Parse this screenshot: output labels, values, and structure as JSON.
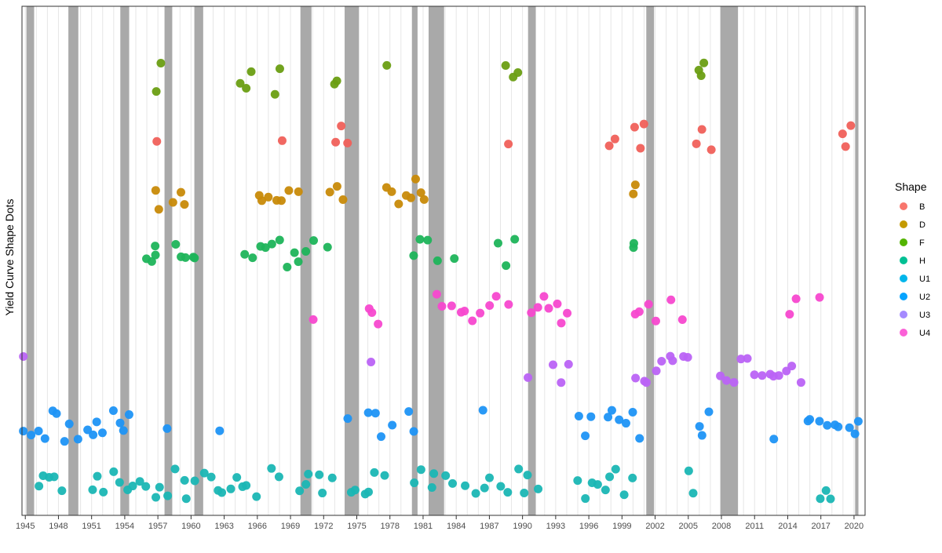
{
  "chart_data": {
    "type": "scatter",
    "title": "",
    "xlabel": "",
    "ylabel": "Yield Curve Shape Dots",
    "x_ticks": [
      "1945",
      "1948",
      "1951",
      "1954",
      "1957",
      "1960",
      "1963",
      "1966",
      "1969",
      "1972",
      "1975",
      "1978",
      "1981",
      "1984",
      "1987",
      "1990",
      "1993",
      "1996",
      "1999",
      "2002",
      "2005",
      "2008",
      "2011",
      "2014",
      "2017",
      "2020"
    ],
    "xlim": [
      1944.7,
      2021.0
    ],
    "grid": "vertical",
    "legend": {
      "title": "Shape",
      "placement": "right",
      "entries": [
        "B",
        "D",
        "F",
        "H",
        "U1",
        "U2",
        "U3",
        "U4"
      ]
    },
    "category_order": [
      "U1",
      "U2",
      "U3",
      "U4",
      "H",
      "D",
      "B",
      "F"
    ],
    "colors": {
      "B": "#F8766D",
      "D": "#C49A00",
      "F": "#53B400",
      "H": "#00C094",
      "U1": "#00B6EB",
      "U2": "#06A4FF",
      "U3": "#A58AFF",
      "U4": "#FB61D7"
    },
    "point_colors": {
      "B": "#F0605A",
      "D": "#C88A08",
      "F": "#6A9E12",
      "H": "#1DB45A",
      "U1": "#1AB6B4",
      "U2": "#1E94F5",
      "U3": "#BB63F5",
      "U4": "#F748CF"
    },
    "recession_color": "#A9A9A9",
    "recessions": [
      [
        1945.1,
        1945.8
      ],
      [
        1948.9,
        1949.8
      ],
      [
        1953.6,
        1954.4
      ],
      [
        1957.6,
        1958.3
      ],
      [
        1960.3,
        1961.1
      ],
      [
        1969.9,
        1970.9
      ],
      [
        1973.9,
        1975.2
      ],
      [
        1980.0,
        1980.5
      ],
      [
        1981.5,
        1982.9
      ],
      [
        1990.5,
        1991.2
      ],
      [
        2001.2,
        2001.9
      ],
      [
        2007.9,
        2009.5
      ],
      [
        2020.1,
        2020.4
      ]
    ],
    "series": [
      {
        "name": "B",
        "x": [
          1957.0,
          1968.0,
          1973.0,
          1973.4,
          1974.0,
          1988.8,
          1998.0,
          1998.5,
          2000.0,
          2000.5,
          2001.0,
          2005.8,
          2006.3,
          2006.9,
          2019.0,
          2019.4,
          2019.8
        ]
      },
      {
        "name": "D",
        "x": [
          1956.8,
          1957.1,
          1958.5,
          1958.9,
          1959.5,
          1966.0,
          1966.6,
          1967.2,
          1967.8,
          1968.3,
          1968.9,
          1969.5,
          1972.8,
          1973.4,
          1974.0,
          1977.8,
          1978.3,
          1978.8,
          1979.3,
          1979.8,
          1980.3,
          1980.8,
          1981.2,
          1999.8,
          2000.2
        ]
      },
      {
        "name": "F",
        "x": [
          1956.8,
          1957.2,
          1964.5,
          1964.9,
          1965.3,
          1967.6,
          1968.0,
          1972.8,
          1973.1,
          1977.5,
          1988.6,
          1989.0,
          1989.4,
          2005.8,
          2006.2,
          2006.5
        ]
      },
      {
        "name": "H",
        "x": [
          1955.8,
          1956.2,
          1956.6,
          1957.0,
          1958.6,
          1959.0,
          1959.5,
          1960.0,
          1960.5,
          1965.0,
          1965.6,
          1966.2,
          1966.8,
          1967.4,
          1968.0,
          1968.6,
          1969.2,
          1969.8,
          1970.4,
          1970.9,
          1972.6,
          1980.2,
          1980.9,
          1981.6,
          1982.2,
          1983.9,
          1987.8,
          1988.6,
          1989.1,
          1999.8,
          2000.2
        ]
      },
      {
        "name": "U1",
        "x": [
          1946.0,
          1946.5,
          1947.0,
          1947.6,
          1948.3,
          1951.0,
          1951.7,
          1952.3,
          1953.0,
          1953.6,
          1954.2,
          1954.8,
          1955.4,
          1956.0,
          1956.6,
          1957.2,
          1958.0,
          1958.6,
          1959.2,
          1959.8,
          1960.4,
          1961.0,
          1961.6,
          1962.2,
          1962.8,
          1963.4,
          1964.0,
          1964.6,
          1965.2,
          1965.8,
          1967.2,
          1967.8,
          1969.6,
          1970.2,
          1970.8,
          1971.4,
          1972.0,
          1972.6,
          1974.4,
          1975.0,
          1975.6,
          1976.2,
          1976.8,
          1977.6,
          1980.2,
          1980.9,
          1981.6,
          1982.2,
          1982.9,
          1983.6,
          1985.0,
          1985.8,
          1986.5,
          1987.2,
          1988.0,
          1988.7,
          1989.4,
          1990.0,
          1990.6,
          1991.2,
          1995.0,
          1995.6,
          1996.2,
          1996.8,
          1997.4,
          1998.0,
          1998.6,
          1999.2,
          2000.2,
          2004.8,
          2005.4,
          2016.8,
          2017.3,
          2017.8
        ]
      },
      {
        "name": "U2",
        "x": [
          1945.0,
          1945.6,
          1946.2,
          1946.8,
          1947.4,
          1948.0,
          1948.6,
          1949.2,
          1949.8,
          1950.4,
          1951.0,
          1951.6,
          1952.2,
          1952.8,
          1953.4,
          1954.0,
          1954.6,
          1957.8,
          1962.8,
          1974.3,
          1976.2,
          1976.8,
          1977.4,
          1978.0,
          1979.6,
          1980.2,
          1986.6,
          1995.0,
          1995.6,
          1996.2,
          1997.6,
          1998.2,
          1998.8,
          1999.4,
          2000.2,
          2000.8,
          2005.8,
          2006.4,
          2007.0,
          2012.6,
          2015.6,
          2016.2,
          2016.8,
          2017.6,
          2018.2,
          2018.8,
          2019.4,
          2019.9,
          2020.4
        ]
      },
      {
        "name": "U3",
        "x": [
          1944.8,
          1976.3,
          1990.5,
          1992.6,
          1993.5,
          1994.2,
          2000.2,
          2000.8,
          2001.4,
          2002.0,
          2002.6,
          2003.2,
          2003.8,
          2004.4,
          2005.2,
          2008.0,
          2008.6,
          2009.2,
          2009.8,
          2010.4,
          2011.0,
          2011.6,
          2012.2,
          2012.8,
          2013.4,
          2014.0,
          2014.6,
          2015.2
        ]
      },
      {
        "name": "U4",
        "x": [
          1970.9,
          1976.0,
          1976.6,
          1977.1,
          1982.3,
          1982.9,
          1983.6,
          1984.3,
          1985.0,
          1985.7,
          1986.4,
          1987.1,
          1987.8,
          1988.5,
          1990.6,
          1991.2,
          1991.8,
          1992.4,
          1993.0,
          1993.6,
          1994.2,
          2000.2,
          2000.8,
          2001.5,
          2002.2,
          2003.4,
          2004.3,
          2014.0,
          2014.6,
          2016.8
        ]
      }
    ]
  }
}
